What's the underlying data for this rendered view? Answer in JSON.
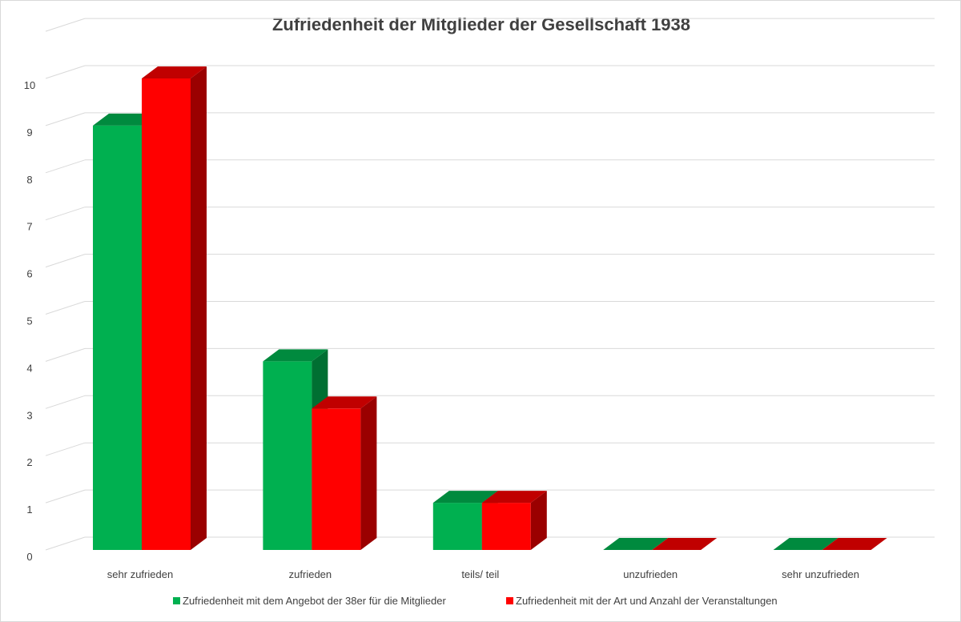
{
  "chart_data": {
    "type": "bar",
    "title": "Zufriedenheit der Mitglieder der Gesellschaft 1938",
    "categories": [
      "sehr zufrieden",
      "zufrieden",
      "teils/ teil",
      "unzufrieden",
      "sehr unzufrieden"
    ],
    "series": [
      {
        "name": "Zufriedenheit mit dem Angebot der 38er für die Mitglieder",
        "values": [
          9,
          4,
          1,
          0,
          0
        ],
        "color": "#00b050",
        "top_color": "#008a3e",
        "side_color": "#006f32"
      },
      {
        "name": "Zufriedenheit mit der Art und Anzahl der Veranstaltungen",
        "values": [
          10,
          3,
          1,
          0,
          0
        ],
        "color": "#ff0000",
        "top_color": "#c00000",
        "side_color": "#9a0000"
      }
    ],
    "ylim": [
      0,
      10
    ],
    "yticks": [
      "0",
      "1",
      "2",
      "3",
      "4",
      "5",
      "6",
      "7",
      "8",
      "9",
      "10"
    ],
    "grid": true,
    "legend_position": "bottom",
    "style": "3d-clustered-column",
    "grid_color": "#d9d9d9"
  }
}
